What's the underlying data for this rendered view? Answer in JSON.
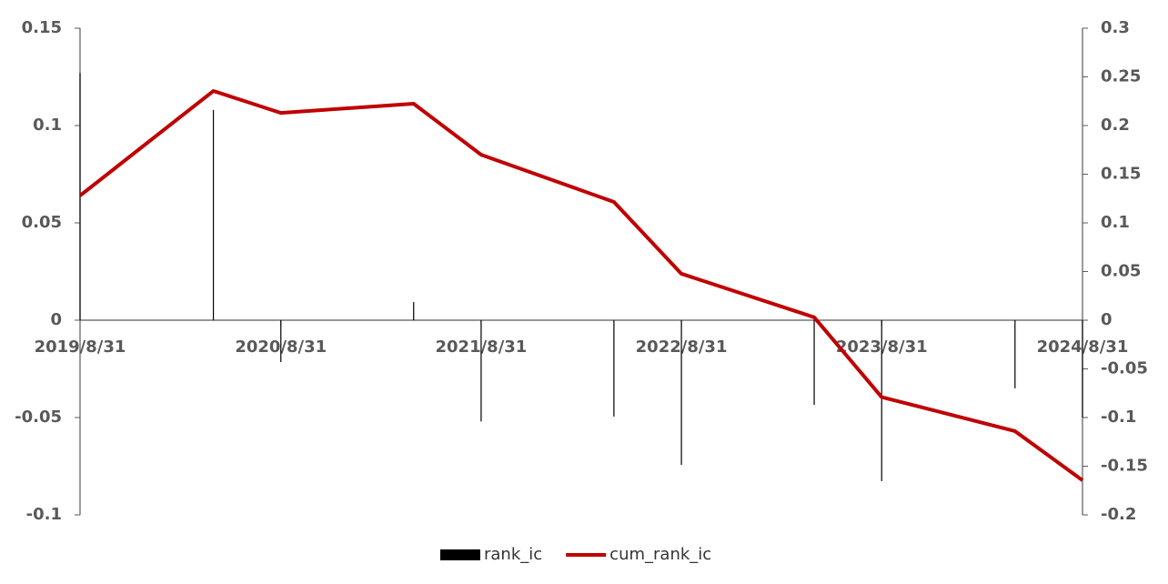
{
  "chart_data": {
    "type": "bar",
    "x": [
      "2019/8/31",
      "2020/4/30",
      "2020/8/31",
      "2021/4/30",
      "2021/8/31",
      "2022/4/30",
      "2022/8/31",
      "2023/4/30",
      "2023/8/31",
      "2024/4/30",
      "2024/8/31"
    ],
    "series": [
      {
        "name": "rank_ic",
        "type": "bar",
        "color": "#000000",
        "values": [
          0.127,
          0.108,
          -0.0215,
          0.0093,
          -0.052,
          -0.0495,
          -0.0743,
          -0.0435,
          -0.0827,
          -0.035,
          -0.05
        ]
      },
      {
        "name": "cum_rank_ic",
        "type": "line",
        "axis": "y2",
        "color": "#c00000",
        "values": [
          0.128,
          0.2355,
          0.213,
          0.2224,
          0.17,
          0.1215,
          0.0477,
          0.003,
          -0.079,
          -0.114,
          -0.1645
        ]
      }
    ],
    "xlim": [
      "2019/8/31",
      "2024/8/31"
    ],
    "xticks": [
      "2019/8/31",
      "2020/8/31",
      "2021/8/31",
      "2022/8/31",
      "2023/8/31",
      "2024/8/31"
    ],
    "ylim": [
      -0.1,
      0.15
    ],
    "yticks": [
      -0.1,
      -0.05,
      0,
      0.05,
      0.1,
      0.15
    ],
    "y2lim": [
      -0.2,
      0.3
    ],
    "y2ticks": [
      -0.2,
      -0.15,
      -0.1,
      -0.05,
      0,
      0.05,
      0.1,
      0.15,
      0.2,
      0.25,
      0.3
    ],
    "legend": "bottom"
  }
}
